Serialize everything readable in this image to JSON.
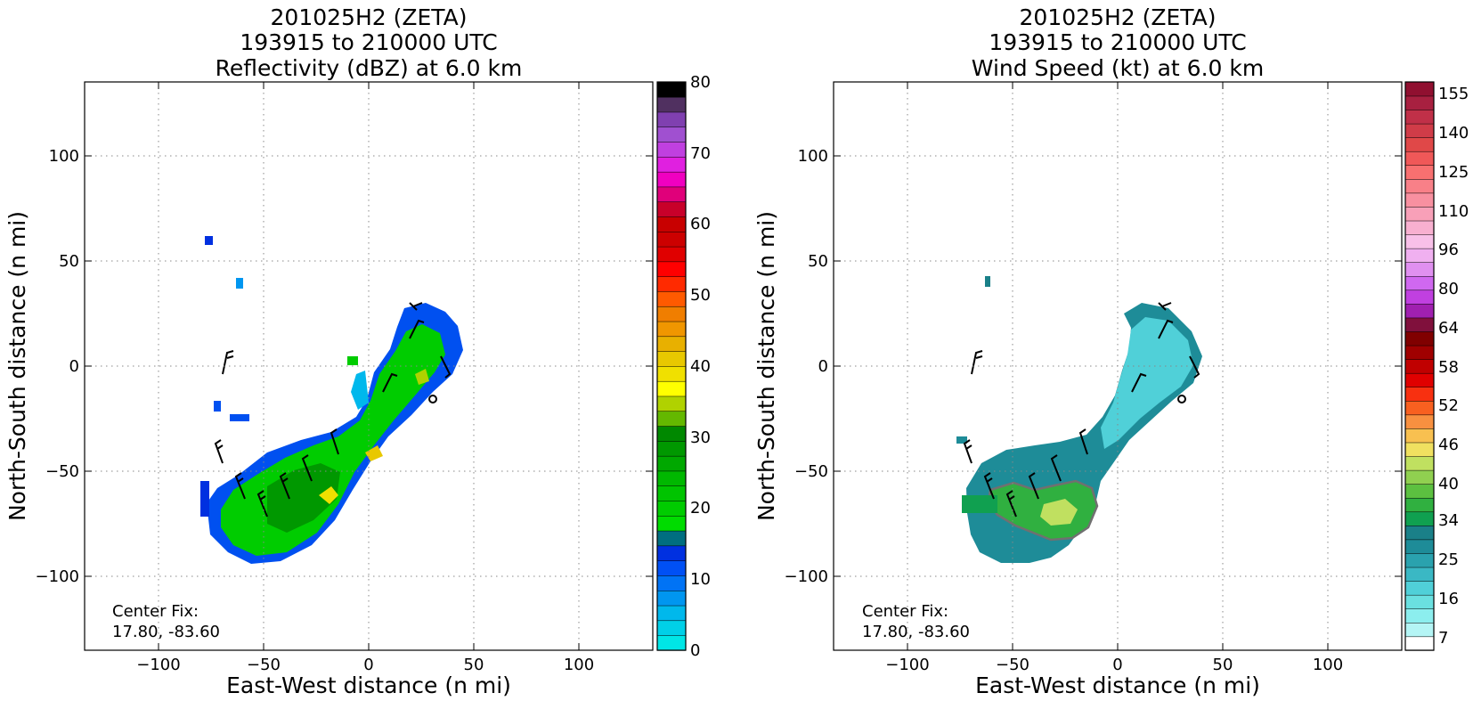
{
  "chart_data": [
    {
      "type": "heatmap",
      "title": [
        "201025H2 (ZETA)",
        "193915 to 210000 UTC",
        "Reflectivity (dBZ) at 6.0 km"
      ],
      "xlabel": "East-West distance (n mi)",
      "ylabel": "North-South distance (n mi)",
      "xlim": [
        -135,
        135
      ],
      "ylim": [
        -135,
        135
      ],
      "xticks": [
        -100,
        -50,
        0,
        50,
        100
      ],
      "yticks": [
        -100,
        -50,
        0,
        50,
        100
      ],
      "xtick_labels": [
        "−100",
        "−50",
        "0",
        "50",
        "100"
      ],
      "ytick_labels": [
        "−100",
        "−50",
        "0",
        "50",
        "100"
      ],
      "grid": true,
      "annotation": [
        "Center Fix:",
        "17.80, -83.60"
      ],
      "colorbar": {
        "label_values": [
          0,
          10,
          20,
          30,
          40,
          50,
          60,
          70,
          80
        ],
        "labels": [
          "0",
          "10",
          "20",
          "30",
          "40",
          "50",
          "60",
          "70",
          "80"
        ],
        "boundaries": [
          0,
          2.5,
          5,
          7.5,
          10,
          12.5,
          15,
          17.5,
          20,
          22.5,
          25,
          27.5,
          30,
          32.5,
          35,
          37.5,
          40,
          42.5,
          45,
          47.5,
          50,
          52.5,
          55,
          57.5,
          60,
          62.5,
          65,
          67.5,
          70,
          72.5,
          75,
          77.5,
          80
        ],
        "colors": [
          "#00e6e6",
          "#00d0e8",
          "#00b8ec",
          "#0096f0",
          "#0073f5",
          "#0050f5",
          "#0030e0",
          "#006e80",
          "#00dc00",
          "#00cc00",
          "#00c400",
          "#00b800",
          "#00a800",
          "#009800",
          "#008800",
          "#64b800",
          "#b0d200",
          "#ffff00",
          "#f0e000",
          "#e8c800",
          "#e8b000",
          "#f09600",
          "#f07e00",
          "#ff5a00",
          "#ff2a00",
          "#ff0000",
          "#e00000",
          "#cc0000",
          "#c80000",
          "#c8002a",
          "#e0007a",
          "#f000c0",
          "#e020e0",
          "#c040e0",
          "#a050d0",
          "#8040b0",
          "#503060",
          "#000000"
        ]
      }
    },
    {
      "type": "heatmap",
      "title": [
        "201025H2 (ZETA)",
        "193915 to 210000 UTC",
        "Wind Speed (kt) at 6.0 km"
      ],
      "xlabel": "East-West distance (n mi)",
      "ylabel": "North-South distance (n mi)",
      "xlim": [
        -135,
        135
      ],
      "ylim": [
        -135,
        135
      ],
      "xticks": [
        -100,
        -50,
        0,
        50,
        100
      ],
      "yticks": [
        -100,
        -50,
        0,
        50,
        100
      ],
      "xtick_labels": [
        "−100",
        "−50",
        "0",
        "50",
        "100"
      ],
      "ytick_labels": [
        "−100",
        "−50",
        "0",
        "50",
        "100"
      ],
      "grid": true,
      "annotation": [
        "Center Fix:",
        "17.80, -83.60"
      ],
      "colorbar": {
        "labels": [
          "7",
          "16",
          "25",
          "34",
          "40",
          "46",
          "52",
          "58",
          "64",
          "80",
          "96",
          "110",
          "125",
          "140",
          "155"
        ],
        "colors": [
          "#ffffff",
          "#b4f5f5",
          "#8ceeee",
          "#6ae0e0",
          "#50d0d8",
          "#3ab8c4",
          "#2aa2ae",
          "#1e8c98",
          "#1a8088",
          "#10a050",
          "#30b040",
          "#5cc040",
          "#90d050",
          "#c0e060",
          "#f0e060",
          "#f8c050",
          "#f89040",
          "#f86020",
          "#f83010",
          "#e00000",
          "#c00000",
          "#a00000",
          "#800000",
          "#80103c",
          "#a020b0",
          "#c040e0",
          "#d068f0",
          "#e090f0",
          "#f0b0f0",
          "#f8c0e8",
          "#f8b0d0",
          "#f8a0b8",
          "#f890a0",
          "#f88088",
          "#f87070",
          "#f05858",
          "#e04848",
          "#d03c48",
          "#c03048",
          "#a82040",
          "#901030"
        ]
      }
    }
  ]
}
